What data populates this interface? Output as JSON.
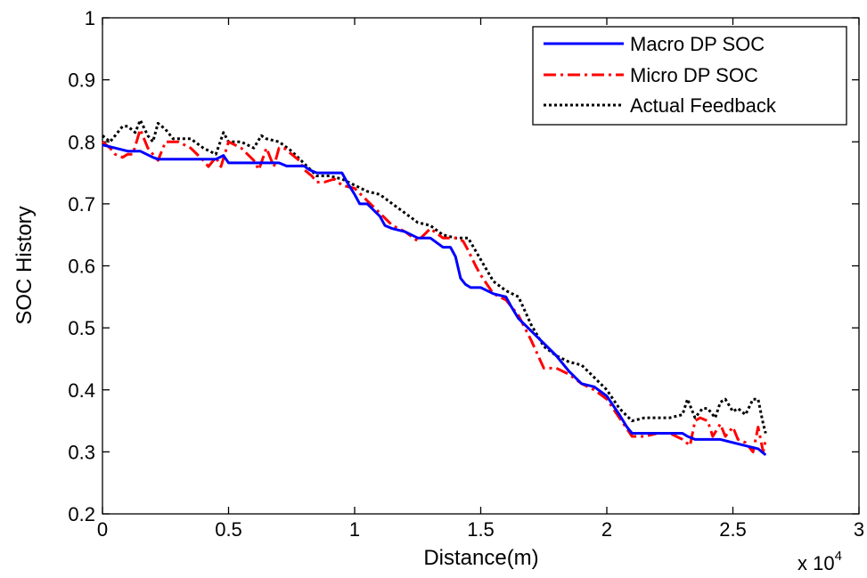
{
  "chart_data": {
    "type": "line",
    "title": "",
    "xlabel": "Distance(m)",
    "ylabel": "SOC History",
    "x_multiplier_label": "x 10",
    "x_multiplier_exponent": "4",
    "xlim": [
      0,
      3
    ],
    "ylim": [
      0.2,
      1
    ],
    "xticks": [
      "0",
      "0.5",
      "1",
      "1.5",
      "2",
      "2.5",
      "3"
    ],
    "yticks": [
      "0.2",
      "0.3",
      "0.4",
      "0.5",
      "0.6",
      "0.7",
      "0.8",
      "0.9",
      "1"
    ],
    "grid": false,
    "legend_position": "top-right",
    "series": [
      {
        "name": "Macro DP SOC",
        "color": "#0000ff",
        "style": "solid",
        "x": [
          0,
          0.05,
          0.1,
          0.12,
          0.15,
          0.2,
          0.22,
          0.25,
          0.35,
          0.45,
          0.48,
          0.5,
          0.6,
          0.7,
          0.73,
          0.75,
          0.8,
          0.82,
          0.85,
          0.92,
          0.95,
          0.97,
          1.0,
          1.02,
          1.05,
          1.1,
          1.12,
          1.15,
          1.2,
          1.25,
          1.3,
          1.35,
          1.38,
          1.4,
          1.42,
          1.44,
          1.46,
          1.5,
          1.55,
          1.6,
          1.62,
          1.65,
          1.7,
          1.75,
          1.8,
          1.85,
          1.9,
          1.95,
          2.0,
          2.05,
          2.08,
          2.1,
          2.2,
          2.3,
          2.32,
          2.35,
          2.4,
          2.45,
          2.5,
          2.55,
          2.6,
          2.63
        ],
        "y": [
          0.795,
          0.79,
          0.785,
          0.785,
          0.785,
          0.775,
          0.772,
          0.772,
          0.772,
          0.772,
          0.778,
          0.766,
          0.766,
          0.766,
          0.761,
          0.761,
          0.761,
          0.755,
          0.75,
          0.75,
          0.75,
          0.735,
          0.715,
          0.7,
          0.7,
          0.68,
          0.665,
          0.66,
          0.655,
          0.645,
          0.645,
          0.63,
          0.63,
          0.615,
          0.58,
          0.57,
          0.565,
          0.565,
          0.555,
          0.55,
          0.535,
          0.515,
          0.495,
          0.475,
          0.455,
          0.43,
          0.41,
          0.405,
          0.39,
          0.36,
          0.34,
          0.33,
          0.33,
          0.33,
          0.325,
          0.32,
          0.32,
          0.32,
          0.315,
          0.31,
          0.305,
          0.295
        ]
      },
      {
        "name": "Micro DP SOC",
        "color": "#ff0000",
        "style": "dashdot",
        "x": [
          0,
          0.03,
          0.05,
          0.08,
          0.1,
          0.12,
          0.15,
          0.18,
          0.2,
          0.22,
          0.25,
          0.3,
          0.35,
          0.4,
          0.42,
          0.45,
          0.47,
          0.5,
          0.55,
          0.6,
          0.62,
          0.65,
          0.68,
          0.7,
          0.72,
          0.75,
          0.78,
          0.8,
          0.83,
          0.85,
          0.88,
          0.92,
          0.95,
          1.0,
          1.05,
          1.1,
          1.15,
          1.2,
          1.25,
          1.3,
          1.35,
          1.4,
          1.43,
          1.45,
          1.48,
          1.5,
          1.55,
          1.6,
          1.65,
          1.7,
          1.75,
          1.8,
          1.85,
          1.9,
          1.95,
          2.0,
          2.05,
          2.1,
          2.15,
          2.2,
          2.25,
          2.3,
          2.33,
          2.35,
          2.37,
          2.4,
          2.42,
          2.45,
          2.47,
          2.5,
          2.52,
          2.55,
          2.58,
          2.6,
          2.62,
          2.63
        ],
        "y": [
          0.8,
          0.79,
          0.78,
          0.775,
          0.78,
          0.78,
          0.82,
          0.79,
          0.78,
          0.77,
          0.8,
          0.8,
          0.79,
          0.77,
          0.76,
          0.775,
          0.76,
          0.8,
          0.79,
          0.77,
          0.755,
          0.79,
          0.76,
          0.79,
          0.79,
          0.78,
          0.77,
          0.755,
          0.745,
          0.735,
          0.735,
          0.74,
          0.73,
          0.725,
          0.705,
          0.685,
          0.665,
          0.655,
          0.64,
          0.66,
          0.645,
          0.645,
          0.64,
          0.625,
          0.6,
          0.585,
          0.555,
          0.545,
          0.52,
          0.48,
          0.435,
          0.435,
          0.425,
          0.41,
          0.4,
          0.385,
          0.355,
          0.325,
          0.325,
          0.33,
          0.33,
          0.32,
          0.31,
          0.35,
          0.355,
          0.35,
          0.325,
          0.345,
          0.325,
          0.34,
          0.32,
          0.315,
          0.3,
          0.34,
          0.3,
          0.32
        ]
      },
      {
        "name": "Actual Feedback",
        "color": "#000000",
        "style": "dotted",
        "x": [
          0,
          0.03,
          0.05,
          0.08,
          0.1,
          0.13,
          0.15,
          0.18,
          0.2,
          0.22,
          0.25,
          0.28,
          0.3,
          0.35,
          0.4,
          0.45,
          0.48,
          0.5,
          0.55,
          0.6,
          0.63,
          0.65,
          0.7,
          0.75,
          0.8,
          0.85,
          0.9,
          0.95,
          1.0,
          1.05,
          1.1,
          1.15,
          1.2,
          1.25,
          1.3,
          1.35,
          1.4,
          1.45,
          1.5,
          1.55,
          1.6,
          1.65,
          1.7,
          1.75,
          1.8,
          1.85,
          1.9,
          1.95,
          2.0,
          2.05,
          2.1,
          2.15,
          2.2,
          2.25,
          2.3,
          2.32,
          2.35,
          2.38,
          2.4,
          2.43,
          2.45,
          2.47,
          2.5,
          2.52,
          2.55,
          2.58,
          2.6,
          2.62,
          2.63
        ],
        "y": [
          0.81,
          0.8,
          0.81,
          0.825,
          0.825,
          0.815,
          0.835,
          0.81,
          0.8,
          0.83,
          0.82,
          0.805,
          0.805,
          0.805,
          0.79,
          0.78,
          0.815,
          0.8,
          0.8,
          0.79,
          0.81,
          0.805,
          0.8,
          0.785,
          0.765,
          0.745,
          0.745,
          0.74,
          0.73,
          0.72,
          0.715,
          0.7,
          0.685,
          0.67,
          0.665,
          0.65,
          0.645,
          0.645,
          0.61,
          0.575,
          0.56,
          0.55,
          0.505,
          0.47,
          0.455,
          0.445,
          0.44,
          0.42,
          0.4,
          0.37,
          0.35,
          0.355,
          0.355,
          0.355,
          0.36,
          0.385,
          0.355,
          0.37,
          0.37,
          0.355,
          0.38,
          0.385,
          0.365,
          0.37,
          0.36,
          0.385,
          0.385,
          0.345,
          0.33
        ]
      }
    ]
  }
}
